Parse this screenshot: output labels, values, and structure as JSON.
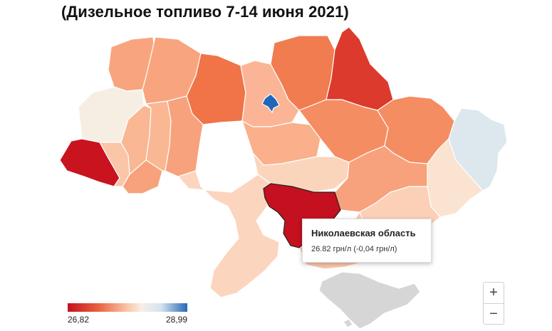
{
  "title": "(Дизельное топливо 7-14 июня 2021)",
  "tooltip": {
    "region": "Николаевская область",
    "value": "26.82 грн/л (-0,04 грн/л)"
  },
  "legend": {
    "min": "26,82",
    "max": "28,99",
    "low_color": "#c4101f",
    "high_color": "#2569b8"
  },
  "zoom": {
    "in": "+",
    "out": "−"
  }
}
